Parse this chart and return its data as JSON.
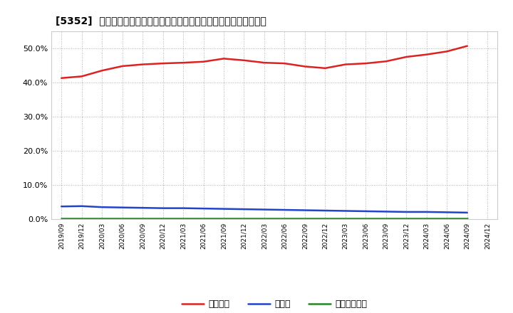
{
  "title": "[5352]  自己資本、のれん、繰延税金資産の総資産に対する比率の推移",
  "x_labels": [
    "2019/09",
    "2019/12",
    "2020/03",
    "2020/06",
    "2020/09",
    "2020/12",
    "2021/03",
    "2021/06",
    "2021/09",
    "2021/12",
    "2022/03",
    "2022/06",
    "2022/09",
    "2022/12",
    "2023/03",
    "2023/06",
    "2023/09",
    "2023/12",
    "2024/03",
    "2024/06",
    "2024/09",
    "2024/12"
  ],
  "equity": [
    41.3,
    41.8,
    43.5,
    44.8,
    45.3,
    45.6,
    45.8,
    46.1,
    47.0,
    46.5,
    45.8,
    45.6,
    44.7,
    44.2,
    45.3,
    45.6,
    46.2,
    47.5,
    48.2,
    49.1,
    50.7,
    null
  ],
  "goodwill": [
    3.7,
    3.8,
    3.5,
    3.4,
    3.3,
    3.2,
    3.2,
    3.1,
    3.0,
    2.9,
    2.8,
    2.7,
    2.6,
    2.5,
    2.4,
    2.3,
    2.2,
    2.1,
    2.1,
    2.0,
    1.9,
    null
  ],
  "deferred_tax": [
    0.3,
    0.3,
    0.3,
    0.3,
    0.3,
    0.3,
    0.3,
    0.3,
    0.3,
    0.3,
    0.3,
    0.3,
    0.3,
    0.3,
    0.3,
    0.3,
    0.3,
    0.3,
    0.3,
    0.3,
    0.3,
    null
  ],
  "equity_color": "#dd2222",
  "goodwill_color": "#2244cc",
  "deferred_tax_color": "#228822",
  "bg_color": "#ffffff",
  "plot_bg_color": "#ffffff",
  "grid_color": "#999999",
  "ylim": [
    0,
    55
  ],
  "yticks": [
    0,
    10,
    20,
    30,
    40,
    50
  ],
  "legend_equity": "自己資本",
  "legend_goodwill": "のれん",
  "legend_deferred": "繰延税金資産"
}
